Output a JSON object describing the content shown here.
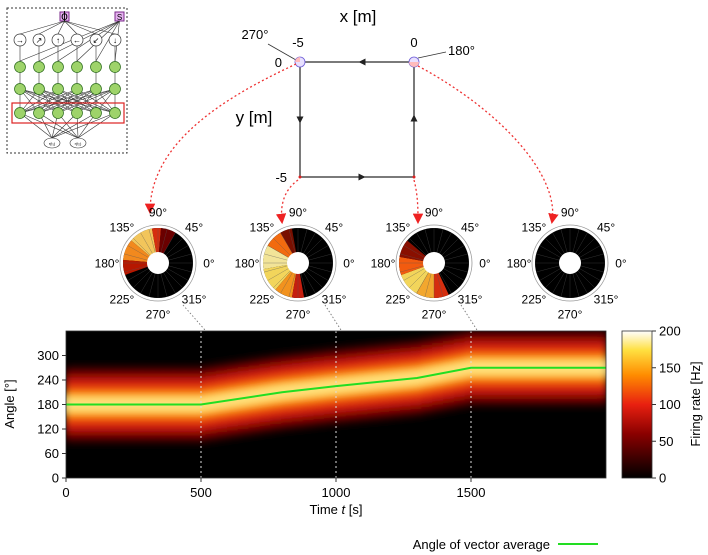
{
  "network_inset": {
    "top_labels": [
      "ϕ",
      "S"
    ],
    "ring_glyphs": [
      "→",
      "↗",
      "↑",
      "←",
      "↙",
      "↓"
    ],
    "bottom_labels": [
      "r(t₁)",
      "r(t₂)"
    ]
  },
  "trajectory": {
    "xlabel": "x [m]",
    "ylabel": "y [m]",
    "x_ticks": [
      "-5",
      "0"
    ],
    "y_ticks": [
      "0",
      "-5"
    ],
    "corner_angles": [
      "270°",
      "180°"
    ]
  },
  "polar_labels": [
    "90°",
    "45°",
    "0°",
    "315°",
    "270°",
    "225°",
    "180°",
    "135°"
  ],
  "chart_data": {
    "type": "heatmap",
    "xlabel_prefix": "Time ",
    "xlabel_var": "t",
    "xlabel_unit": " [s]",
    "ylabel": "Angle [°]",
    "xlim": [
      0,
      2000
    ],
    "ylim": [
      0,
      360
    ],
    "x_ticks": [
      0,
      500,
      1000,
      1500
    ],
    "y_ticks": [
      0,
      60,
      120,
      180,
      240,
      300
    ],
    "marker_times": [
      500,
      1000,
      1500
    ],
    "vector_average": {
      "name": "Angle of vector average",
      "color": "#22dd22",
      "x": [
        0,
        500,
        800,
        1000,
        1300,
        1500,
        2000
      ],
      "y": [
        180,
        180,
        210,
        225,
        245,
        270,
        270
      ]
    },
    "colorbar": {
      "label": "Firing rate [Hz]",
      "ticks": [
        0,
        50,
        100,
        150,
        200
      ],
      "range": [
        0,
        200
      ]
    }
  }
}
